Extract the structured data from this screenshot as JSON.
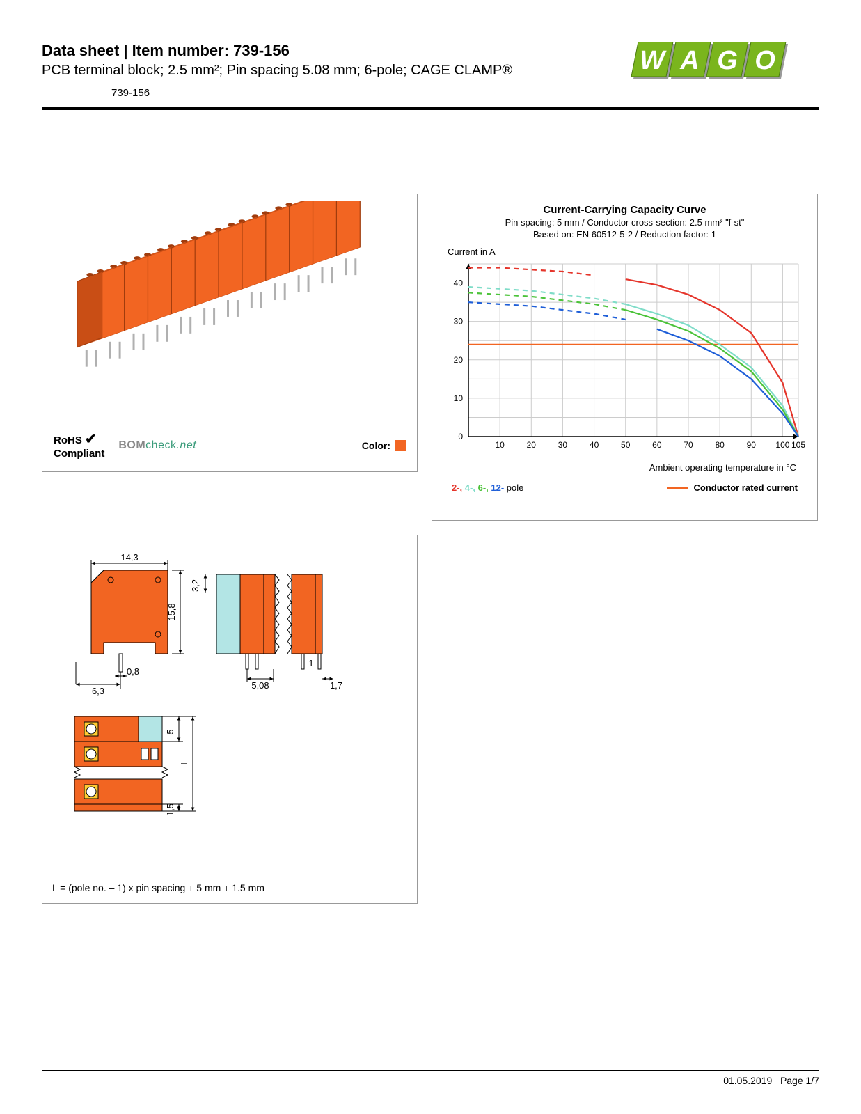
{
  "header": {
    "prefix": "Data sheet",
    "separator": "  |  ",
    "item_label": "Item number: ",
    "item_number": "739-156",
    "description": "PCB terminal block; 2.5 mm²; Pin spacing 5.08 mm; 6-pole; CAGE CLAMP®",
    "sub_item": "739-156"
  },
  "logo": {
    "text": "WAGO",
    "letter_fill": "#7ab51d",
    "letter_stroke": "#4a7a10",
    "shadow": "#9a9a9a"
  },
  "product_panel": {
    "block_color": "#f26522",
    "pin_color": "#b0b0b0",
    "rohs_line1": "RoHS",
    "rohs_line2": "Compliant",
    "bom_grey": "BOM",
    "bom_green": "check",
    "bom_net": ".net",
    "bom_green_hex": "#3a9b7a",
    "color_label": "Color:",
    "swatch_color": "#f26522"
  },
  "chart": {
    "title": "Current-Carrying Capacity Curve",
    "sub1": "Pin spacing: 5 mm / Conductor cross-section: 2.5 mm² \"f-st\"",
    "sub2": "Based on: EN 60512-5-2 / Reduction factor: 1",
    "ylabel": "Current in A",
    "xlabel": "Ambient operating temperature in °C",
    "xlim": [
      0,
      105
    ],
    "ylim": [
      0,
      45
    ],
    "xticks": [
      0,
      10,
      20,
      30,
      40,
      50,
      60,
      70,
      80,
      90,
      100,
      105
    ],
    "yticks": [
      0,
      10,
      20,
      30,
      40
    ],
    "grid_color": "#cccccc",
    "axis_color": "#000000",
    "background": "#ffffff",
    "rated_current": 24,
    "rated_color": "#f26522",
    "series": {
      "pole2": {
        "color": "#e5352b",
        "dash_to": 45,
        "points": [
          [
            0,
            44
          ],
          [
            10,
            44
          ],
          [
            20,
            43.5
          ],
          [
            30,
            43
          ],
          [
            40,
            42
          ],
          [
            50,
            41
          ],
          [
            60,
            39.5
          ],
          [
            70,
            37
          ],
          [
            80,
            33
          ],
          [
            90,
            27
          ],
          [
            100,
            14
          ],
          [
            105,
            0
          ]
        ]
      },
      "pole4": {
        "color": "#7fdcc8",
        "dash_to": 50,
        "points": [
          [
            0,
            39
          ],
          [
            10,
            38.5
          ],
          [
            20,
            38
          ],
          [
            30,
            37
          ],
          [
            40,
            36
          ],
          [
            50,
            34.5
          ],
          [
            60,
            32
          ],
          [
            70,
            29
          ],
          [
            80,
            24
          ],
          [
            90,
            18
          ],
          [
            100,
            8
          ],
          [
            105,
            0
          ]
        ]
      },
      "pole6": {
        "color": "#4cc33a",
        "dash_to": 50,
        "points": [
          [
            0,
            37.5
          ],
          [
            10,
            37
          ],
          [
            20,
            36.5
          ],
          [
            30,
            35.5
          ],
          [
            40,
            34.5
          ],
          [
            50,
            33
          ],
          [
            60,
            30.5
          ],
          [
            70,
            27.5
          ],
          [
            80,
            23
          ],
          [
            90,
            17
          ],
          [
            100,
            7
          ],
          [
            105,
            0
          ]
        ]
      },
      "pole12": {
        "color": "#1f5fd8",
        "dash_to": 55,
        "points": [
          [
            0,
            35
          ],
          [
            10,
            34.5
          ],
          [
            20,
            34
          ],
          [
            30,
            33
          ],
          [
            40,
            32
          ],
          [
            50,
            30.5
          ],
          [
            60,
            28
          ],
          [
            70,
            25
          ],
          [
            80,
            21
          ],
          [
            90,
            15
          ],
          [
            100,
            6
          ],
          [
            105,
            0
          ]
        ]
      }
    },
    "legend_poles": [
      {
        "label": "2-",
        "color": "#e5352b"
      },
      {
        "label": "4-",
        "color": "#7fdcc8"
      },
      {
        "label": "6-",
        "color": "#4cc33a"
      },
      {
        "label": "12-",
        "color": "#1f5fd8"
      }
    ],
    "legend_pole_suffix": " pole",
    "legend_conductor": "Conductor rated current"
  },
  "dimensions": {
    "block_fill": "#f26522",
    "block_stroke": "#000000",
    "marker_fill": "#b3e5e5",
    "inner_fill": "#ffcc33",
    "labels": {
      "w_top": "14,3",
      "h_side": "15,8",
      "pin_w": "0,8",
      "left_off": "6,3",
      "gap": "3,2",
      "pitch": "5,08",
      "end": "1,7",
      "p1": "1",
      "row_pitch": "5",
      "row_end": "1,5",
      "L": "L"
    },
    "formula": "L = (pole no. – 1) x pin spacing + 5 mm + 1.5 mm"
  },
  "footer": {
    "date": "01.05.2019",
    "page": "Page 1/7"
  }
}
